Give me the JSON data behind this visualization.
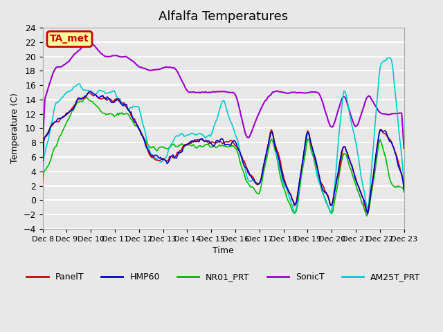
{
  "title": "Alfalfa Temperatures",
  "ylabel": "Temperature (C)",
  "xlabel": "Time",
  "ylim": [
    -4,
    24
  ],
  "yticks": [
    -4,
    -2,
    0,
    2,
    4,
    6,
    8,
    10,
    12,
    14,
    16,
    18,
    20,
    22,
    24
  ],
  "background_color": "#e8e8e8",
  "plot_bg_color": "#e8e8e8",
  "grid_color": "#ffffff",
  "annotation_text": "TA_met",
  "annotation_bg": "#ffff99",
  "annotation_border": "#cc0000",
  "legend_labels": [
    "PanelT",
    "HMP60",
    "NR01_PRT",
    "SonicT",
    "AM25T_PRT"
  ],
  "line_colors": {
    "PanelT": "#cc0000",
    "HMP60": "#0000cc",
    "NR01_PRT": "#00bb00",
    "SonicT": "#9900cc",
    "AM25T_PRT": "#00cccc"
  },
  "xticklabels": [
    "Dec 8",
    "Dec 9",
    "Dec 10",
    "Dec 11",
    "Dec 12",
    "Dec 13",
    "Dec 14",
    "Dec 15",
    "Dec 16",
    "Dec 17",
    "Dec 18",
    "Dec 19",
    "Dec 20",
    "Dec 21",
    "Dec 22",
    "Dec 23"
  ],
  "n_points": 16
}
